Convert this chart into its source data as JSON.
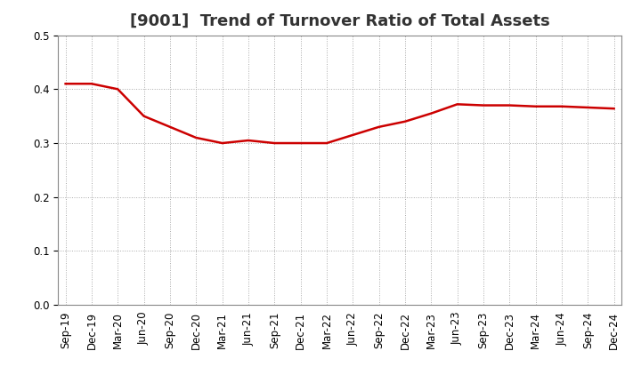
{
  "title": "[9001]  Trend of Turnover Ratio of Total Assets",
  "x_labels": [
    "Sep-19",
    "Dec-19",
    "Mar-20",
    "Jun-20",
    "Sep-20",
    "Dec-20",
    "Mar-21",
    "Jun-21",
    "Sep-21",
    "Dec-21",
    "Mar-22",
    "Jun-22",
    "Sep-22",
    "Dec-22",
    "Mar-23",
    "Jun-23",
    "Sep-23",
    "Dec-23",
    "Mar-24",
    "Jun-24",
    "Sep-24",
    "Dec-24"
  ],
  "y_values": [
    0.41,
    0.41,
    0.4,
    0.35,
    0.33,
    0.31,
    0.3,
    0.305,
    0.3,
    0.3,
    0.3,
    0.315,
    0.33,
    0.34,
    0.355,
    0.372,
    0.37,
    0.37,
    0.368,
    0.368,
    0.366,
    0.364
  ],
  "line_color": "#cc0000",
  "line_width": 1.8,
  "ylim": [
    0.0,
    0.5
  ],
  "yticks": [
    0.0,
    0.1,
    0.2,
    0.3,
    0.4,
    0.5
  ],
  "background_color": "#ffffff",
  "grid_color": "#aaaaaa",
  "grid_dot_size": 0.5,
  "title_fontsize": 13,
  "tick_fontsize": 8.5,
  "title_color": "#333333"
}
